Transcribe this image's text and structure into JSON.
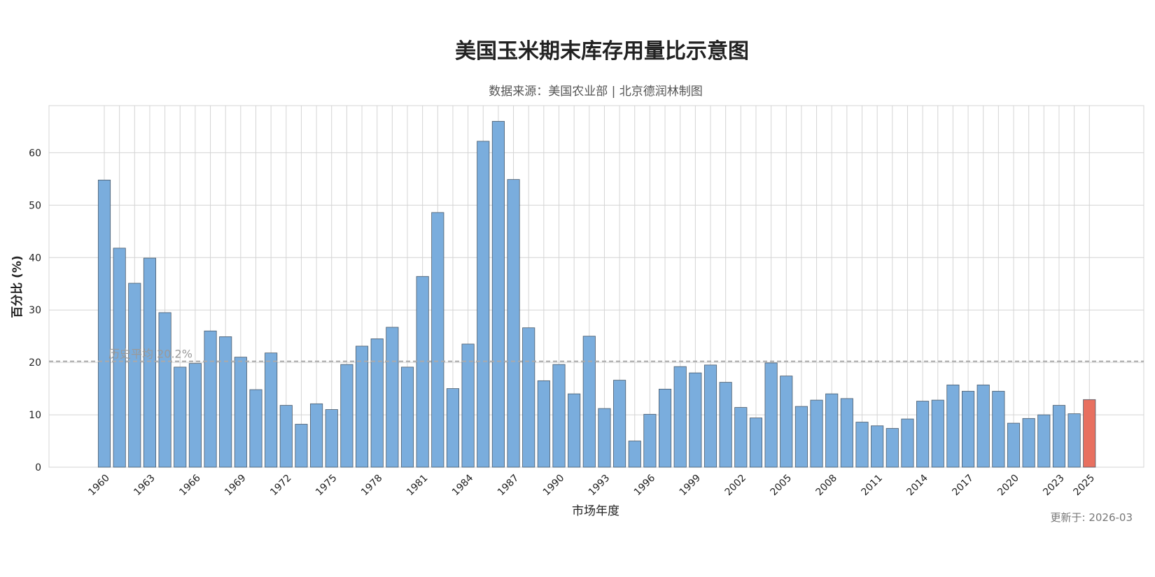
{
  "chart_data": {
    "type": "bar",
    "title": "美国玉米期末库存用量比示意图",
    "subtitle": "数据来源：美国农业部 | 北京德润林制图",
    "xlabel": "市场年度",
    "ylabel": "百分比 (%)",
    "ylim": [
      0,
      69
    ],
    "yticks": [
      0,
      10,
      20,
      30,
      40,
      50,
      60
    ],
    "xticks": [
      "1960",
      "1963",
      "1966",
      "1969",
      "1972",
      "1975",
      "1978",
      "1981",
      "1984",
      "1987",
      "1990",
      "1993",
      "1996",
      "1999",
      "2002",
      "2005",
      "2008",
      "2011",
      "2014",
      "2017",
      "2020",
      "2023",
      "2025"
    ],
    "categories": [
      "1960",
      "1961",
      "1962",
      "1963",
      "1964",
      "1965",
      "1966",
      "1967",
      "1968",
      "1969",
      "1970",
      "1971",
      "1972",
      "1973",
      "1974",
      "1975",
      "1976",
      "1977",
      "1978",
      "1979",
      "1980",
      "1981",
      "1982",
      "1983",
      "1984",
      "1985",
      "1986",
      "1987",
      "1988",
      "1989",
      "1990",
      "1991",
      "1992",
      "1993",
      "1994",
      "1995",
      "1996",
      "1997",
      "1998",
      "1999",
      "2000",
      "2001",
      "2002",
      "2003",
      "2004",
      "2005",
      "2006",
      "2007",
      "2008",
      "2009",
      "2010",
      "2011",
      "2012",
      "2013",
      "2014",
      "2015",
      "2016",
      "2017",
      "2018",
      "2019",
      "2020",
      "2021",
      "2022",
      "2023",
      "2024",
      "2025"
    ],
    "values": [
      54.8,
      41.8,
      35.1,
      39.9,
      29.5,
      19.1,
      19.8,
      26.0,
      24.9,
      21.0,
      14.8,
      21.8,
      11.8,
      8.2,
      12.1,
      11.0,
      19.6,
      23.1,
      24.5,
      26.7,
      19.1,
      36.4,
      48.6,
      15.0,
      23.5,
      62.2,
      66.0,
      54.9,
      26.6,
      16.5,
      19.6,
      14.0,
      25.0,
      11.2,
      16.6,
      5.0,
      10.1,
      14.9,
      19.2,
      18.0,
      19.5,
      16.2,
      11.4,
      9.4,
      19.9,
      17.4,
      11.6,
      12.8,
      14.0,
      13.1,
      8.6,
      7.9,
      7.4,
      9.2,
      12.6,
      12.8,
      15.7,
      14.5,
      15.7,
      14.5,
      8.4,
      9.3,
      10.0,
      11.8,
      10.2,
      12.9
    ],
    "highlight_category": "2025",
    "average_line": {
      "value": 20.2,
      "label": "历史平均 20.2%"
    },
    "grid": true,
    "colors": {
      "bar": "#7aaddd",
      "bar_highlight": "#e87060",
      "bar_edge": "#4a5a6a",
      "grid": "#d4d4d4",
      "avg_line": "#aaaaaa"
    }
  },
  "footer": {
    "updated": "更新于: 2026-03"
  }
}
